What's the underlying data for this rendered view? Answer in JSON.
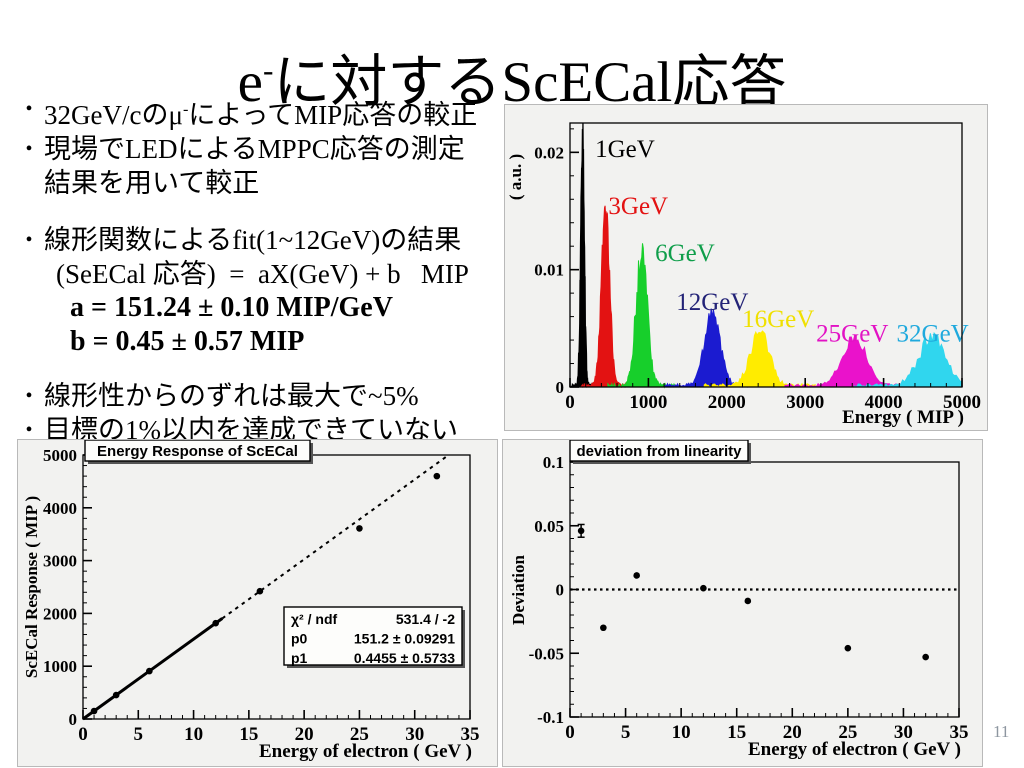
{
  "slide": {
    "title": {
      "base1": "e",
      "sup": "-",
      "base2": "に対するScECal応答"
    },
    "page_number": "11",
    "bullets": {
      "marker": "•",
      "b1_pre": "32GeV/cのμ",
      "b1_sup": "-",
      "b1_post": "によってMIP応答の較正",
      "b2_line1": "現場でLEDによるMPPC応答の測定",
      "b2_line2": "結果を用いて較正",
      "b3_line1": "線形関数によるfit(1~12GeV)の結果",
      "b3_formula": "(SeECal 応答)  =  aX(GeV) + b   MIP",
      "b3_a": "a = 151.24 ± 0.10 MIP/GeV",
      "b3_b": "b = 0.45 ± 0.57 MIP",
      "b4": "線形性からのずれは最大で~5%",
      "b5": "目標の1%以内を達成できていない"
    }
  },
  "chart_data": [
    {
      "id": "spectra",
      "type": "area",
      "title": "",
      "xlabel": "Energy ( MIP )",
      "ylabel": "( a.u. )",
      "xlim": [
        0,
        5000
      ],
      "ylim": [
        0,
        0.0225
      ],
      "xtick_vals": [
        0,
        1000,
        2000,
        3000,
        4000,
        5000
      ],
      "xtick_labels": [
        "0",
        "1000",
        "2000",
        "3000",
        "4000",
        "5000"
      ],
      "ytick_vals": [
        0,
        0.01,
        0.02
      ],
      "ytick_labels": [
        "0",
        "0.01",
        "0.02"
      ],
      "x_minor_step": 200,
      "y_minor_step": 0.002,
      "grid": false,
      "series": [
        {
          "name": "1GeV",
          "hist_color": "#000000",
          "label_color": "#000000",
          "peak_center": 160,
          "peak_sigma": 24,
          "peak_height": 0.0215,
          "label_x": 320,
          "label_y": 0.0196
        },
        {
          "name": "3GeV",
          "hist_color": "#e31212",
          "label_color": "#e31212",
          "peak_center": 455,
          "peak_sigma": 52,
          "peak_height": 0.0152,
          "label_x": 490,
          "label_y": 0.01475
        },
        {
          "name": "6GeV",
          "hist_color": "#17cf2b",
          "label_color": "#0f9e4a",
          "peak_center": 915,
          "peak_sigma": 72,
          "peak_height": 0.011,
          "label_x": 1085,
          "label_y": 0.01074
        },
        {
          "name": "12GeV",
          "hist_color": "#1b1bd0",
          "label_color": "#232377",
          "peak_center": 1815,
          "peak_sigma": 100,
          "peak_height": 0.0061,
          "label_x": 1355,
          "label_y": 0.00655
        },
        {
          "name": "16GeV",
          "hist_color": "#ffec00",
          "label_color": "#f0e000",
          "peak_center": 2420,
          "peak_sigma": 118,
          "peak_height": 0.0046,
          "label_x": 2195,
          "label_y": 0.00511
        },
        {
          "name": "25GeV",
          "hist_color": "#ea12cb",
          "label_color": "#e212c4",
          "peak_center": 3630,
          "peak_sigma": 148,
          "peak_height": 0.0041,
          "label_x": 3140,
          "label_y": 0.00386
        },
        {
          "name": "32GeV",
          "hist_color": "#30d6ee",
          "label_color": "#1fa9dd",
          "peak_center": 4620,
          "peak_sigma": 165,
          "peak_height": 0.0041,
          "label_x": 4165,
          "label_y": 0.00386
        }
      ]
    },
    {
      "id": "response",
      "type": "scatter",
      "title": "Energy Response of ScECal",
      "xlabel": "Energy of electron ( GeV )",
      "ylabel": "ScECal Response ( MIP )",
      "xlim": [
        0,
        35
      ],
      "ylim": [
        0,
        5000
      ],
      "xtick_vals": [
        0,
        5,
        10,
        15,
        20,
        25,
        30,
        35
      ],
      "xtick_labels": [
        "0",
        "5",
        "10",
        "15",
        "20",
        "25",
        "30",
        "35"
      ],
      "ytick_vals": [
        0,
        1000,
        2000,
        3000,
        4000,
        5000
      ],
      "ytick_labels": [
        "0",
        "1000",
        "2000",
        "3000",
        "4000",
        "5000"
      ],
      "x_minor_step": 1,
      "y_minor_step": 200,
      "grid": false,
      "points": [
        [
          1,
          151
        ],
        [
          3,
          454
        ],
        [
          6,
          907
        ],
        [
          12,
          1815
        ],
        [
          16,
          2420
        ],
        [
          25,
          3610
        ],
        [
          32,
          4600
        ]
      ],
      "fit": {
        "p0": 151.2,
        "p1": 0.4455,
        "solid_x": [
          0,
          12.6
        ],
        "dashed_x": [
          12.6,
          33.1
        ]
      },
      "stats": {
        "rows": [
          [
            "χ² / ndf",
            "531.4 / -2"
          ],
          [
            "p0",
            "151.2 ± 0.09291"
          ],
          [
            "p1",
            "0.4455 ± 0.5733"
          ]
        ]
      }
    },
    {
      "id": "deviation",
      "type": "scatter",
      "title": "deviation from linearity",
      "xlabel": "Energy of electron ( GeV )",
      "ylabel": "Deviation",
      "xlim": [
        0,
        35
      ],
      "ylim": [
        -0.1,
        0.1
      ],
      "xtick_vals": [
        0,
        5,
        10,
        15,
        20,
        25,
        30,
        35
      ],
      "xtick_labels": [
        "0",
        "5",
        "10",
        "15",
        "20",
        "25",
        "30",
        "35"
      ],
      "ytick_vals": [
        0.1,
        0.05,
        0,
        -0.05,
        -0.1
      ],
      "ytick_labels": [
        "0.1",
        "0.05",
        "0",
        "-0.05",
        "-0.1"
      ],
      "x_minor_step": 1,
      "y_minor_step": 0.01,
      "grid": false,
      "zero_line": true,
      "points": [
        [
          1,
          0.046
        ],
        [
          3,
          -0.03
        ],
        [
          6,
          0.011
        ],
        [
          12,
          0.001
        ],
        [
          16,
          -0.009
        ],
        [
          25,
          -0.046
        ],
        [
          32,
          -0.053
        ]
      ],
      "error_bars": [
        {
          "x": 1,
          "y": 0.046,
          "err": 0.005
        }
      ]
    }
  ]
}
